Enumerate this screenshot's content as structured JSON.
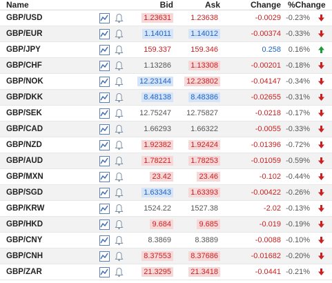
{
  "header": {
    "name": "Name",
    "bid": "Bid",
    "ask": "Ask",
    "change": "Change",
    "pct_change": "%Change"
  },
  "colors": {
    "negative": "#cc1f1f",
    "positive": "#1d62c8",
    "neutral": "#555555",
    "up_arrow": "#1f9a3a",
    "down_arrow": "#cc1f1f",
    "neg_highlight": "#f7d8d8",
    "pos_highlight": "#d6e4f7"
  },
  "icons": {
    "chart": "chart-icon",
    "alert": "bell-icon"
  },
  "rows": [
    {
      "name": "GBP/USD",
      "bid": "1.23631",
      "ask": "1.23638",
      "change": "-0.0029",
      "pct": "-0.23%",
      "bid_dir": "neg",
      "bid_hl": true,
      "ask_dir": "neg",
      "ask_hl": false,
      "chg_dir": "neg",
      "arrow": "down"
    },
    {
      "name": "GBP/EUR",
      "bid": "1.14011",
      "ask": "1.14012",
      "change": "-0.00374",
      "pct": "-0.33%",
      "bid_dir": "pos",
      "bid_hl": true,
      "ask_dir": "pos",
      "ask_hl": true,
      "chg_dir": "neg",
      "arrow": "down"
    },
    {
      "name": "GBP/JPY",
      "bid": "159.337",
      "ask": "159.346",
      "change": "0.258",
      "pct": "0.16%",
      "bid_dir": "neg",
      "bid_hl": false,
      "ask_dir": "neg",
      "ask_hl": false,
      "chg_dir": "pos",
      "arrow": "up"
    },
    {
      "name": "GBP/CHF",
      "bid": "1.13286",
      "ask": "1.13308",
      "change": "-0.00201",
      "pct": "-0.18%",
      "bid_dir": "neu",
      "bid_hl": false,
      "ask_dir": "neg",
      "ask_hl": true,
      "chg_dir": "neg",
      "arrow": "down"
    },
    {
      "name": "GBP/NOK",
      "bid": "12.23144",
      "ask": "12.23802",
      "change": "-0.04147",
      "pct": "-0.34%",
      "bid_dir": "pos",
      "bid_hl": true,
      "ask_dir": "neg",
      "ask_hl": true,
      "chg_dir": "neg",
      "arrow": "down"
    },
    {
      "name": "GBP/DKK",
      "bid": "8.48138",
      "ask": "8.48386",
      "change": "-0.02655",
      "pct": "-0.31%",
      "bid_dir": "pos",
      "bid_hl": true,
      "ask_dir": "pos",
      "ask_hl": true,
      "chg_dir": "neg",
      "arrow": "down"
    },
    {
      "name": "GBP/SEK",
      "bid": "12.75247",
      "ask": "12.75827",
      "change": "-0.0218",
      "pct": "-0.17%",
      "bid_dir": "neu",
      "bid_hl": false,
      "ask_dir": "neu",
      "ask_hl": false,
      "chg_dir": "neg",
      "arrow": "down"
    },
    {
      "name": "GBP/CAD",
      "bid": "1.66293",
      "ask": "1.66322",
      "change": "-0.0055",
      "pct": "-0.33%",
      "bid_dir": "neu",
      "bid_hl": false,
      "ask_dir": "neu",
      "ask_hl": false,
      "chg_dir": "neg",
      "arrow": "down"
    },
    {
      "name": "GBP/NZD",
      "bid": "1.92382",
      "ask": "1.92424",
      "change": "-0.01396",
      "pct": "-0.72%",
      "bid_dir": "neg",
      "bid_hl": true,
      "ask_dir": "neg",
      "ask_hl": true,
      "chg_dir": "neg",
      "arrow": "down"
    },
    {
      "name": "GBP/AUD",
      "bid": "1.78221",
      "ask": "1.78253",
      "change": "-0.01059",
      "pct": "-0.59%",
      "bid_dir": "neg",
      "bid_hl": true,
      "ask_dir": "neg",
      "ask_hl": true,
      "chg_dir": "neg",
      "arrow": "down"
    },
    {
      "name": "GBP/MXN",
      "bid": "23.42",
      "ask": "23.46",
      "change": "-0.102",
      "pct": "-0.44%",
      "bid_dir": "neg",
      "bid_hl": true,
      "ask_dir": "neg",
      "ask_hl": true,
      "chg_dir": "neg",
      "arrow": "down"
    },
    {
      "name": "GBP/SGD",
      "bid": "1.63343",
      "ask": "1.63393",
      "change": "-0.00422",
      "pct": "-0.26%",
      "bid_dir": "pos",
      "bid_hl": true,
      "ask_dir": "neg",
      "ask_hl": true,
      "chg_dir": "neg",
      "arrow": "down"
    },
    {
      "name": "GBP/KRW",
      "bid": "1524.22",
      "ask": "1527.38",
      "change": "-2.02",
      "pct": "-0.13%",
      "bid_dir": "neu",
      "bid_hl": false,
      "ask_dir": "neu",
      "ask_hl": false,
      "chg_dir": "neg",
      "arrow": "down"
    },
    {
      "name": "GBP/HKD",
      "bid": "9.684",
      "ask": "9.685",
      "change": "-0.019",
      "pct": "-0.19%",
      "bid_dir": "neg",
      "bid_hl": true,
      "ask_dir": "neg",
      "ask_hl": true,
      "chg_dir": "neg",
      "arrow": "down"
    },
    {
      "name": "GBP/CNY",
      "bid": "8.3869",
      "ask": "8.3889",
      "change": "-0.0088",
      "pct": "-0.10%",
      "bid_dir": "neu",
      "bid_hl": false,
      "ask_dir": "neu",
      "ask_hl": false,
      "chg_dir": "neg",
      "arrow": "down"
    },
    {
      "name": "GBP/CNH",
      "bid": "8.37553",
      "ask": "8.37686",
      "change": "-0.01682",
      "pct": "-0.20%",
      "bid_dir": "neg",
      "bid_hl": true,
      "ask_dir": "neg",
      "ask_hl": true,
      "chg_dir": "neg",
      "arrow": "down"
    },
    {
      "name": "GBP/ZAR",
      "bid": "21.3295",
      "ask": "21.3418",
      "change": "-0.0441",
      "pct": "-0.21%",
      "bid_dir": "neg",
      "bid_hl": true,
      "ask_dir": "neg",
      "ask_hl": true,
      "chg_dir": "neg",
      "arrow": "down"
    }
  ]
}
